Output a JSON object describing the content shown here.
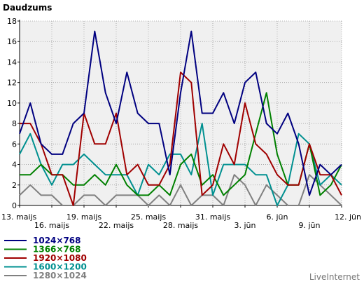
{
  "chart_data": {
    "type": "line",
    "title": "Daudzums",
    "ylim": [
      0,
      18
    ],
    "yticks": [
      0,
      2,
      4,
      6,
      8,
      10,
      12,
      14,
      16,
      18
    ],
    "x_top_ticks": [
      {
        "i": 0,
        "label": "13. maijs"
      },
      {
        "i": 6,
        "label": "19. maijs"
      },
      {
        "i": 12,
        "label": "25. maijs"
      },
      {
        "i": 18,
        "label": "31. maijs"
      },
      {
        "i": 24,
        "label": "6. jūn"
      },
      {
        "i": 30,
        "label": "12. jūn"
      }
    ],
    "x_bottom_ticks": [
      {
        "i": 3,
        "label": "16. maijs"
      },
      {
        "i": 9,
        "label": "22. maijs"
      },
      {
        "i": 15,
        "label": "28. maijs"
      },
      {
        "i": 21,
        "label": "3. jūn"
      },
      {
        "i": 27,
        "label": "9. jūn"
      }
    ],
    "grid": true,
    "legend_position": "bottom-left",
    "series": [
      {
        "name": "1024×768",
        "color": "#000080",
        "values": [
          7,
          10,
          6,
          5,
          5,
          8,
          9,
          17,
          11,
          8,
          13,
          9,
          8,
          8,
          3,
          11,
          17,
          9,
          9,
          11,
          8,
          12,
          13,
          8,
          7,
          9,
          6,
          1,
          4,
          3,
          4
        ]
      },
      {
        "name": "1366×768",
        "color": "#008000",
        "values": [
          3,
          3,
          4,
          3,
          3,
          2,
          2,
          3,
          2,
          4,
          2,
          1,
          1,
          2,
          1,
          4,
          5,
          2,
          3,
          1,
          2,
          3,
          7,
          11,
          5,
          2,
          2,
          6,
          1,
          2,
          4
        ]
      },
      {
        "name": "1920×1080",
        "color": "#a00000",
        "values": [
          8,
          8,
          6,
          3,
          3,
          0,
          9,
          6,
          6,
          9,
          3,
          4,
          2,
          2,
          4,
          13,
          12,
          1,
          2,
          6,
          4,
          10,
          6,
          5,
          3,
          2,
          2,
          6,
          3,
          3,
          1
        ]
      },
      {
        "name": "1600×1200",
        "color": "#009090",
        "values": [
          5,
          7,
          4,
          2,
          4,
          4,
          5,
          4,
          3,
          3,
          3,
          1,
          4,
          3,
          5,
          5,
          3,
          8,
          1,
          4,
          4,
          4,
          3,
          3,
          0,
          2,
          7,
          6,
          2,
          3,
          2
        ]
      },
      {
        "name": "1280×1024",
        "color": "#808080",
        "values": [
          1,
          2,
          1,
          1,
          0,
          0,
          1,
          1,
          0,
          1,
          1,
          1,
          0,
          1,
          0,
          2,
          0,
          1,
          1,
          0,
          3,
          2,
          0,
          2,
          1,
          0,
          0,
          3,
          2,
          1,
          0
        ]
      }
    ]
  },
  "watermark": "LiveInternet"
}
